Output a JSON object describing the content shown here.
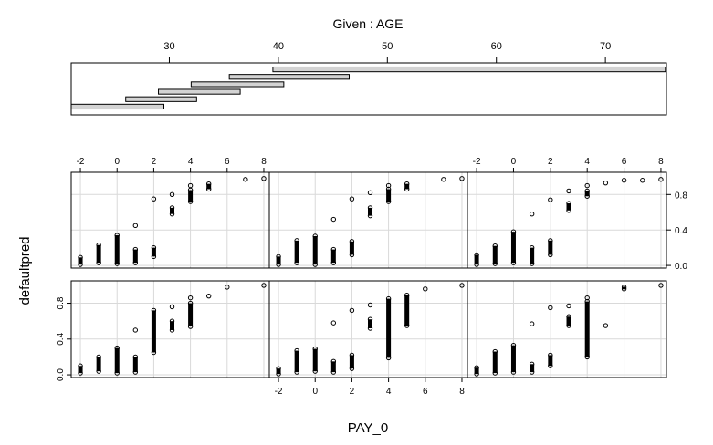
{
  "chart_data": {
    "type": "scatter",
    "title": "Given : AGE",
    "xlabel": "PAY_0",
    "ylabel": "defaultpred",
    "xlim": [
      -2.5,
      8.3
    ],
    "ylim": [
      -0.03,
      1.05
    ],
    "x_ticks": [
      -2,
      0,
      2,
      4,
      6,
      8
    ],
    "y_ticks": [
      0.0,
      0.4,
      0.8
    ],
    "y_tick_labels": [
      "0.0",
      "0.4",
      "0.8"
    ],
    "grid": true,
    "given": {
      "variable": "AGE",
      "xlim": [
        21,
        75.6
      ],
      "ticks": [
        30,
        40,
        50,
        60,
        70
      ],
      "intervals": [
        [
          21,
          29.5
        ],
        [
          26,
          32.5
        ],
        [
          29,
          36.5
        ],
        [
          32,
          40.5
        ],
        [
          35.5,
          46.5
        ],
        [
          39.5,
          75.5
        ]
      ]
    },
    "panels": [
      {
        "age_interval": [
          21,
          29.5
        ],
        "points": [
          {
            "x": -2,
            "y": [
              0.02,
              0.1
            ]
          },
          {
            "x": -1,
            "y": [
              0.04,
              0.2
            ]
          },
          {
            "x": 0,
            "y": [
              0.02,
              0.3
            ]
          },
          {
            "x": 1,
            "y": [
              0.03,
              0.2,
              0.5
            ]
          },
          {
            "x": 2,
            "y": [
              0.25,
              0.72
            ]
          },
          {
            "x": 3,
            "y": [
              0.5,
              0.6,
              0.76
            ]
          },
          {
            "x": 4,
            "y": [
              0.54,
              0.8,
              0.86
            ]
          },
          {
            "x": 5,
            "y": [
              0.88
            ]
          },
          {
            "x": 6,
            "y": [
              0.98
            ]
          },
          {
            "x": 8,
            "y": [
              1.0
            ]
          }
        ]
      },
      {
        "age_interval": [
          26,
          32.5
        ],
        "points": [
          {
            "x": -2,
            "y": [
              0.01,
              0.07
            ]
          },
          {
            "x": -1,
            "y": [
              0.03,
              0.27
            ]
          },
          {
            "x": 0,
            "y": [
              0.04,
              0.29
            ]
          },
          {
            "x": 1,
            "y": [
              0.03,
              0.15,
              0.58
            ]
          },
          {
            "x": 2,
            "y": [
              0.07,
              0.22,
              0.72
            ]
          },
          {
            "x": 3,
            "y": [
              0.52,
              0.62,
              0.78
            ]
          },
          {
            "x": 4,
            "y": [
              0.19,
              0.85
            ]
          },
          {
            "x": 5,
            "y": [
              0.55,
              0.89
            ]
          },
          {
            "x": 6,
            "y": [
              0.96
            ]
          },
          {
            "x": 8,
            "y": [
              1.0
            ]
          }
        ]
      },
      {
        "age_interval": [
          29,
          36.5
        ],
        "points": [
          {
            "x": -2,
            "y": [
              0.01,
              0.08
            ]
          },
          {
            "x": -1,
            "y": [
              0.02,
              0.26
            ]
          },
          {
            "x": 0,
            "y": [
              0.03,
              0.33
            ]
          },
          {
            "x": 1,
            "y": [
              0.03,
              0.12,
              0.57
            ]
          },
          {
            "x": 2,
            "y": [
              0.1,
              0.22,
              0.75
            ]
          },
          {
            "x": 3,
            "y": [
              0.55,
              0.65,
              0.77
            ]
          },
          {
            "x": 4,
            "y": [
              0.2,
              0.82,
              0.86
            ]
          },
          {
            "x": 5,
            "y": [
              0.55
            ]
          },
          {
            "x": 6,
            "y": [
              0.96,
              0.98
            ]
          },
          {
            "x": 8,
            "y": [
              1.0
            ]
          }
        ]
      },
      {
        "age_interval": [
          32,
          40.5
        ],
        "points": [
          {
            "x": -2,
            "y": [
              0.01,
              0.09
            ]
          },
          {
            "x": -1,
            "y": [
              0.03,
              0.23
            ]
          },
          {
            "x": 0,
            "y": [
              0.02,
              0.34
            ]
          },
          {
            "x": 1,
            "y": [
              0.03,
              0.18,
              0.45
            ]
          },
          {
            "x": 2,
            "y": [
              0.1,
              0.2,
              0.75
            ]
          },
          {
            "x": 3,
            "y": [
              0.58,
              0.65,
              0.8
            ]
          },
          {
            "x": 4,
            "y": [
              0.72,
              0.85,
              0.9
            ]
          },
          {
            "x": 5,
            "y": [
              0.86,
              0.92
            ]
          },
          {
            "x": 7,
            "y": [
              0.97
            ]
          },
          {
            "x": 8,
            "y": [
              0.98
            ]
          }
        ]
      },
      {
        "age_interval": [
          35.5,
          46.5
        ],
        "points": [
          {
            "x": -2,
            "y": [
              0.01,
              0.1
            ]
          },
          {
            "x": -1,
            "y": [
              0.03,
              0.28
            ]
          },
          {
            "x": 0,
            "y": [
              0.01,
              0.33
            ]
          },
          {
            "x": 1,
            "y": [
              0.03,
              0.18,
              0.52
            ]
          },
          {
            "x": 2,
            "y": [
              0.12,
              0.27,
              0.75
            ]
          },
          {
            "x": 3,
            "y": [
              0.56,
              0.65,
              0.82
            ]
          },
          {
            "x": 4,
            "y": [
              0.72,
              0.86,
              0.9
            ]
          },
          {
            "x": 5,
            "y": [
              0.86,
              0.92
            ]
          },
          {
            "x": 7,
            "y": [
              0.97
            ]
          },
          {
            "x": 8,
            "y": [
              0.98
            ]
          }
        ]
      },
      {
        "age_interval": [
          39.5,
          75.5
        ],
        "points": [
          {
            "x": -2,
            "y": [
              0.01,
              0.12
            ]
          },
          {
            "x": -1,
            "y": [
              0.02,
              0.22
            ]
          },
          {
            "x": 0,
            "y": [
              0.03,
              0.38
            ]
          },
          {
            "x": 1,
            "y": [
              0.02,
              0.2,
              0.58
            ]
          },
          {
            "x": 2,
            "y": [
              0.12,
              0.28,
              0.74
            ]
          },
          {
            "x": 3,
            "y": [
              0.62,
              0.7,
              0.84
            ]
          },
          {
            "x": 4,
            "y": [
              0.78,
              0.84,
              0.9
            ]
          },
          {
            "x": 5,
            "y": [
              0.93
            ]
          },
          {
            "x": 6,
            "y": [
              0.96
            ]
          },
          {
            "x": 7,
            "y": [
              0.96
            ]
          },
          {
            "x": 8,
            "y": [
              0.97
            ]
          }
        ]
      }
    ]
  }
}
